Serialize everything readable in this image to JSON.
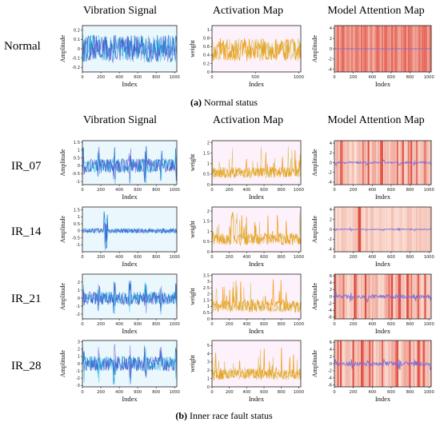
{
  "headers": {
    "top": [
      "Vibration Signal",
      "Activation Map",
      "Model Attention Map"
    ],
    "bottom": [
      "Vibration Signal",
      "Activation Map",
      "Model Attention Map"
    ]
  },
  "captions": {
    "a_tag": "(a)",
    "a_text": "Normal status",
    "b_tag": "(b)",
    "b_text": "Inner race fault status"
  },
  "chart_data": [
    {
      "row": "Normal",
      "col": "Vibration Signal",
      "type": "line",
      "xlabel": "Index",
      "ylabel": "Amplitude",
      "xlim": [
        0,
        1024
      ],
      "ylim": [
        -0.25,
        0.25
      ],
      "yticks": [
        -0.2,
        -0.1,
        0.0,
        0.1,
        0.2
      ],
      "xticks": [
        0,
        200,
        400,
        600,
        800,
        1000
      ],
      "amplitude": 0.15,
      "colors": [
        "#2a7fd0",
        "#1fbfe0",
        "#5a3fd0"
      ]
    },
    {
      "row": "Normal",
      "col": "Activation Map",
      "type": "line",
      "xlabel": "Index",
      "ylabel": "weight",
      "xlim": [
        0,
        1024
      ],
      "ylim": [
        0,
        1.1
      ],
      "yticks": [
        0.0,
        0.2,
        0.4,
        0.6,
        0.8,
        1.0
      ],
      "xticks": [
        0,
        500,
        1000
      ],
      "amplitude": 0.55,
      "colors": [
        "#f4a020",
        "#c8b030"
      ]
    },
    {
      "row": "Normal",
      "col": "Model Attention Map",
      "type": "heatmap",
      "xlabel": "Index",
      "ylabel": "Amplitude",
      "xlim": [
        0,
        1024
      ],
      "ylim": [
        -4.5,
        4.5
      ],
      "yticks": [
        -4,
        -2,
        0,
        2,
        4
      ],
      "xticks": [
        0,
        200,
        400,
        600,
        800,
        1000
      ],
      "signal_amplitude": 0.08,
      "heat": "dense"
    },
    {
      "row": "IR_07",
      "col": "Vibration Signal",
      "type": "line",
      "xlabel": "Index",
      "ylabel": "Amplitude",
      "xlim": [
        0,
        1024
      ],
      "ylim": [
        -1.2,
        1.6
      ],
      "yticks": [
        -1.0,
        -0.5,
        0.0,
        0.5,
        1.0,
        1.5
      ],
      "xticks": [
        0,
        200,
        400,
        600,
        800,
        1000
      ],
      "amplitude": 1.3,
      "colors": [
        "#2a7fd0",
        "#1fbfe0",
        "#5a3fd0"
      ]
    },
    {
      "row": "IR_07",
      "col": "Activation Map",
      "type": "line",
      "xlabel": "Index",
      "ylabel": "weight",
      "xlim": [
        0,
        1024
      ],
      "ylim": [
        0,
        2.1
      ],
      "yticks": [
        0.0,
        0.5,
        1.0,
        1.5,
        2.0
      ],
      "xticks": [
        0,
        200,
        400,
        600,
        800,
        1000
      ],
      "amplitude": 1.8,
      "colors": [
        "#f4a020",
        "#c8b030"
      ]
    },
    {
      "row": "IR_07",
      "col": "Model Attention Map",
      "type": "heatmap",
      "xlabel": "Index",
      "ylabel": "Amplitude",
      "xlim": [
        0,
        1024
      ],
      "ylim": [
        -4.5,
        4.5
      ],
      "yticks": [
        -4,
        -2,
        0,
        2,
        4
      ],
      "xticks": [
        0,
        200,
        400,
        600,
        800,
        1000
      ],
      "signal_amplitude": 0.6,
      "heat": "periodic"
    },
    {
      "row": "IR_14",
      "col": "Vibration Signal",
      "type": "line",
      "xlabel": "Index",
      "ylabel": "Amplitude",
      "xlim": [
        0,
        1024
      ],
      "ylim": [
        -1.5,
        1.7
      ],
      "yticks": [
        -1.0,
        -0.5,
        0.0,
        0.5,
        1.0,
        1.5
      ],
      "xticks": [
        0,
        200,
        400,
        600,
        800,
        1000
      ],
      "amplitude": 1.4,
      "colors": [
        "#2a7fd0",
        "#1fbfe0",
        "#5a3fd0"
      ]
    },
    {
      "row": "IR_14",
      "col": "Activation Map",
      "type": "line",
      "xlabel": "Index",
      "ylabel": "weight",
      "xlim": [
        0,
        1024
      ],
      "ylim": [
        0,
        2.2
      ],
      "yticks": [
        0.0,
        0.5,
        1.0,
        1.5,
        2.0
      ],
      "xticks": [
        0,
        200,
        400,
        600,
        800,
        1000
      ],
      "amplitude": 2.0,
      "colors": [
        "#f4a020",
        "#c8b030"
      ]
    },
    {
      "row": "IR_14",
      "col": "Model Attention Map",
      "type": "heatmap",
      "xlabel": "Index",
      "ylabel": "Amplitude",
      "xlim": [
        0,
        1024
      ],
      "ylim": [
        -4.5,
        4.5
      ],
      "yticks": [
        -4,
        -2,
        0,
        2,
        4
      ],
      "xticks": [
        0,
        200,
        400,
        600,
        800,
        1000
      ],
      "signal_amplitude": 0.3,
      "heat": "single"
    },
    {
      "row": "IR_21",
      "col": "Vibration Signal",
      "type": "line",
      "xlabel": "Index",
      "ylabel": "Amplitude",
      "xlim": [
        0,
        1024
      ],
      "ylim": [
        -2.6,
        3.0
      ],
      "yticks": [
        -2,
        -1,
        0,
        1,
        2
      ],
      "xticks": [
        0,
        200,
        400,
        600,
        800,
        1000
      ],
      "amplitude": 2.3,
      "colors": [
        "#2a7fd0",
        "#1fbfe0",
        "#5a3fd0"
      ]
    },
    {
      "row": "IR_21",
      "col": "Activation Map",
      "type": "line",
      "xlabel": "Index",
      "ylabel": "weight",
      "xlim": [
        0,
        1024
      ],
      "ylim": [
        0,
        3.6
      ],
      "yticks": [
        0.0,
        0.5,
        1.0,
        1.5,
        2.0,
        2.5,
        3.0,
        3.5
      ],
      "xticks": [
        0,
        200,
        400,
        600,
        800,
        1000
      ],
      "amplitude": 3.2,
      "colors": [
        "#f4a020",
        "#c8b030"
      ]
    },
    {
      "row": "IR_21",
      "col": "Model Attention Map",
      "type": "heatmap",
      "xlabel": "Index",
      "ylabel": "Amplitude",
      "xlim": [
        0,
        1024
      ],
      "ylim": [
        -6.5,
        6.5
      ],
      "yticks": [
        -6,
        -4,
        -2,
        0,
        2,
        4,
        6
      ],
      "xticks": [
        0,
        200,
        400,
        600,
        800,
        1000
      ],
      "signal_amplitude": 1.6,
      "heat": "periodic"
    },
    {
      "row": "IR_28",
      "col": "Vibration Signal",
      "type": "line",
      "xlabel": "Index",
      "ylabel": "Amplitude",
      "xlim": [
        0,
        1024
      ],
      "ylim": [
        -3.2,
        3.2
      ],
      "yticks": [
        -3,
        -2,
        -1,
        0,
        1,
        2,
        3
      ],
      "xticks": [
        0,
        200,
        400,
        600,
        800,
        1000
      ],
      "amplitude": 2.9,
      "colors": [
        "#2a7fd0",
        "#1fbfe0",
        "#5a3fd0"
      ]
    },
    {
      "row": "IR_28",
      "col": "Activation Map",
      "type": "line",
      "xlabel": "Index",
      "ylabel": "weight",
      "xlim": [
        0,
        1024
      ],
      "ylim": [
        0,
        5.6
      ],
      "yticks": [
        0,
        1,
        2,
        3,
        4,
        5
      ],
      "xticks": [
        0,
        200,
        400,
        600,
        800,
        1000
      ],
      "amplitude": 4.6,
      "colors": [
        "#f4a020",
        "#c8b030"
      ]
    },
    {
      "row": "IR_28",
      "col": "Model Attention Map",
      "type": "heatmap",
      "xlabel": "Index",
      "ylabel": "Amplitude",
      "xlim": [
        0,
        1024
      ],
      "ylim": [
        -6.5,
        6.5
      ],
      "yticks": [
        -6,
        -4,
        -2,
        0,
        2,
        4,
        6
      ],
      "xticks": [
        0,
        200,
        400,
        600,
        800,
        1000
      ],
      "signal_amplitude": 1.8,
      "heat": "periodic"
    }
  ]
}
